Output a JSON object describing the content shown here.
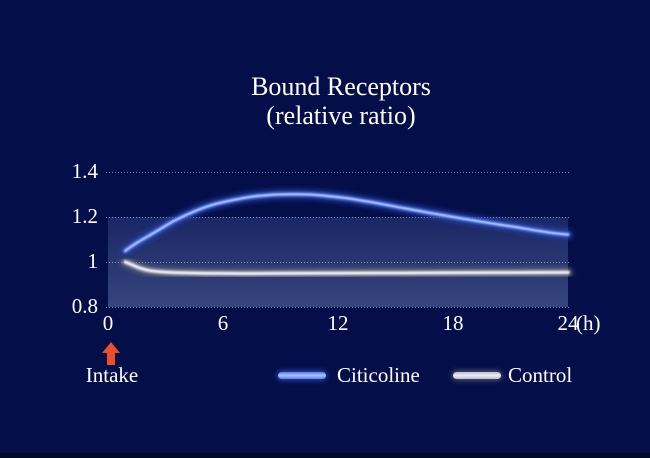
{
  "title": {
    "line1": "Bound Receptors",
    "line2": "(relative ratio)"
  },
  "colors": {
    "background": "#040e48",
    "text": "#ffffff",
    "gridline": "rgba(205,212,228,0.6)",
    "plot_gradient_top": "#1a2764",
    "plot_gradient_bottom": "#36457e",
    "arrow": "#e8502c",
    "citicoline_glow": "#2443ae",
    "citicoline_mid": "#5b7de8",
    "citicoline_core": "#a8c2fa",
    "control_glow": "#6a707c",
    "control_mid": "#b9bec6",
    "control_core": "#eceef2"
  },
  "annotation": {
    "label": "Intake",
    "icon": "up-arrow-icon"
  },
  "chart_data": {
    "type": "line",
    "title": "Bound Receptors (relative ratio)",
    "xlabel": "",
    "ylabel": "",
    "x_unit_label": "(h)",
    "xlim": [
      0,
      24
    ],
    "ylim": [
      0.8,
      1.4
    ],
    "x_ticks": [
      "0",
      "6",
      "12",
      "18",
      "24"
    ],
    "x_tick_values": [
      0,
      6,
      12,
      18,
      24
    ],
    "y_ticks": [
      "1.4",
      "1.2",
      "1",
      "0.8"
    ],
    "y_tick_values": [
      1.4,
      1.2,
      1.0,
      0.8
    ],
    "grid": "horizontal dotted",
    "legend_position": "bottom",
    "annotations": [
      {
        "text": "Intake",
        "x": 0,
        "marker": "red up arrow below x-axis at 0 h"
      }
    ],
    "series": [
      {
        "name": "Citicoline",
        "points": [
          [
            0.9,
            1.05
          ],
          [
            1.5,
            1.085
          ],
          [
            2.5,
            1.135
          ],
          [
            3.5,
            1.185
          ],
          [
            4.5,
            1.225
          ],
          [
            5.5,
            1.255
          ],
          [
            6.5,
            1.275
          ],
          [
            7.5,
            1.29
          ],
          [
            8.5,
            1.298
          ],
          [
            9.5,
            1.301
          ],
          [
            10.5,
            1.3
          ],
          [
            11.5,
            1.293
          ],
          [
            12.5,
            1.283
          ],
          [
            14,
            1.262
          ],
          [
            15.5,
            1.238
          ],
          [
            17,
            1.215
          ],
          [
            18.5,
            1.193
          ],
          [
            20,
            1.172
          ],
          [
            21.5,
            1.152
          ],
          [
            22.5,
            1.138
          ],
          [
            23.3,
            1.128
          ],
          [
            24,
            1.122
          ]
        ]
      },
      {
        "name": "Control",
        "points": [
          [
            0.9,
            1.0
          ],
          [
            1.2,
            0.99
          ],
          [
            1.6,
            0.975
          ],
          [
            2.1,
            0.963
          ],
          [
            2.8,
            0.956
          ],
          [
            3.8,
            0.952
          ],
          [
            5,
            0.95
          ],
          [
            7,
            0.949
          ],
          [
            10,
            0.95
          ],
          [
            14,
            0.951
          ],
          [
            18,
            0.952
          ],
          [
            21,
            0.953
          ],
          [
            24,
            0.954
          ]
        ]
      }
    ]
  }
}
